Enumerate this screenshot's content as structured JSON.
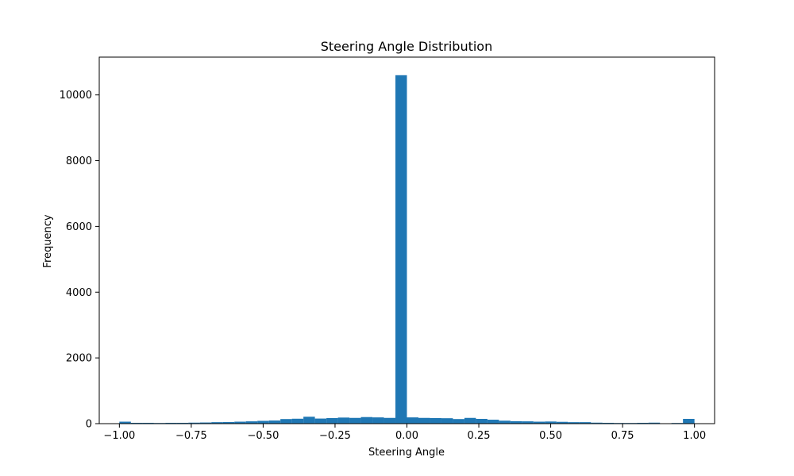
{
  "chart_data": {
    "type": "bar",
    "title": "Steering Angle Distribution",
    "xlabel": "Steering Angle",
    "ylabel": "Frequency",
    "xlim": [
      -1.07,
      1.07
    ],
    "ylim": [
      0,
      11150
    ],
    "x_ticks": [
      -1.0,
      -0.75,
      -0.5,
      -0.25,
      0.0,
      0.25,
      0.5,
      0.75,
      1.0
    ],
    "x_tick_labels": [
      "−1.00",
      "−0.75",
      "−0.50",
      "−0.25",
      "0.00",
      "0.25",
      "0.50",
      "0.75",
      "1.00"
    ],
    "y_ticks": [
      0,
      2000,
      4000,
      6000,
      8000,
      10000
    ],
    "y_tick_labels": [
      "0",
      "2000",
      "4000",
      "6000",
      "8000",
      "10000"
    ],
    "bin_start": -1.0,
    "bin_width": 0.04,
    "values": [
      60,
      25,
      25,
      20,
      25,
      25,
      30,
      35,
      45,
      50,
      60,
      70,
      85,
      95,
      140,
      150,
      210,
      155,
      170,
      185,
      175,
      200,
      190,
      175,
      10600,
      190,
      175,
      170,
      165,
      140,
      175,
      145,
      120,
      90,
      75,
      70,
      60,
      65,
      55,
      45,
      45,
      30,
      25,
      20,
      20,
      25,
      30,
      10,
      20,
      145
    ],
    "bar_color": "#1f77b4",
    "grid": false,
    "legend": "none"
  }
}
